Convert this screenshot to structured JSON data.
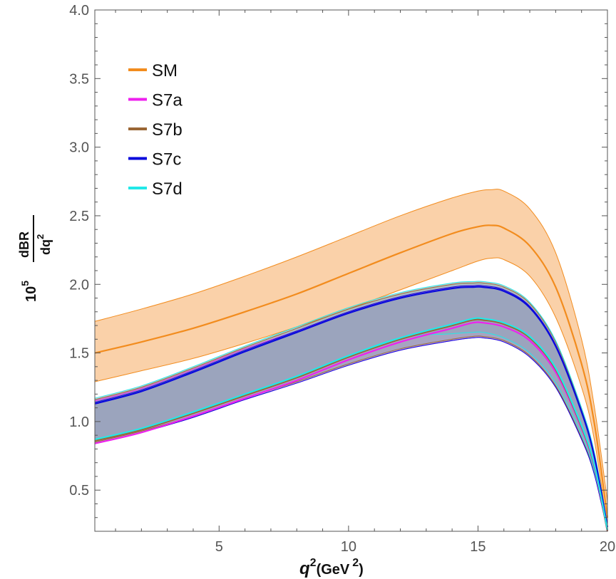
{
  "chart_data": {
    "type": "line",
    "title": "",
    "xlabel": {
      "base": "q",
      "sup": "2",
      "unit_open": "(GeV",
      "unit_sup": "2",
      "unit_close": ")"
    },
    "ylabel": {
      "factor": "10",
      "factor_sup": "5",
      "numerator": "dBR",
      "denominator": "dq",
      "denominator_sup": "2"
    },
    "xlim": [
      0.2,
      20.0
    ],
    "ylim": [
      0.2,
      4.0
    ],
    "xticks": [
      5,
      10,
      15,
      20
    ],
    "xtick_labels": [
      "5",
      "10",
      "15",
      "20"
    ],
    "yticks": [
      0.5,
      1.0,
      1.5,
      2.0,
      2.5,
      3.0,
      3.5,
      4.0
    ],
    "ytick_labels": [
      "0.5",
      "1.0",
      "1.5",
      "2.0",
      "2.5",
      "3.0",
      "3.5",
      "4.0"
    ],
    "grid": false,
    "legend_position": "top-left",
    "series": [
      {
        "name": "SM",
        "color": "#F28C1E",
        "band_fill": "#F9C99A",
        "x": [
          0.2,
          2,
          4,
          6,
          8,
          10,
          12,
          14,
          15,
          15.5,
          16,
          17,
          18,
          19,
          19.5,
          20.0
        ],
        "central": [
          1.5,
          1.58,
          1.68,
          1.8,
          1.93,
          2.08,
          2.23,
          2.37,
          2.42,
          2.43,
          2.41,
          2.28,
          1.98,
          1.42,
          0.98,
          0.3
        ],
        "upper": [
          1.73,
          1.82,
          1.93,
          2.06,
          2.2,
          2.35,
          2.5,
          2.63,
          2.68,
          2.69,
          2.68,
          2.55,
          2.23,
          1.6,
          1.1,
          0.42
        ],
        "lower": [
          1.29,
          1.37,
          1.46,
          1.57,
          1.69,
          1.82,
          1.96,
          2.1,
          2.17,
          2.19,
          2.18,
          2.06,
          1.76,
          1.25,
          0.86,
          0.22
        ]
      },
      {
        "name": "S7a",
        "color": "#EE20EE",
        "band_fill": "#A48BC8",
        "x": [
          0.2,
          2,
          4,
          6,
          8,
          10,
          12,
          14,
          14.8,
          15.2,
          16,
          17,
          18,
          19,
          19.5,
          20.0
        ],
        "central": [
          0.84,
          0.92,
          1.04,
          1.17,
          1.3,
          1.45,
          1.58,
          1.68,
          1.72,
          1.72,
          1.69,
          1.59,
          1.36,
          0.95,
          0.66,
          0.2
        ],
        "upper": [
          1.15,
          1.24,
          1.38,
          1.53,
          1.66,
          1.8,
          1.91,
          1.98,
          1.99,
          1.99,
          1.96,
          1.84,
          1.56,
          1.08,
          0.75,
          0.24
        ],
        "lower": [
          0.84,
          0.92,
          1.03,
          1.16,
          1.28,
          1.41,
          1.52,
          1.59,
          1.61,
          1.61,
          1.58,
          1.47,
          1.25,
          0.87,
          0.61,
          0.2
        ]
      },
      {
        "name": "S7b",
        "color": "#9A6635",
        "band_fill": "#7F8A78",
        "x": [
          0.2,
          2,
          4,
          6,
          8,
          10,
          12,
          14,
          14.8,
          15.2,
          16,
          17,
          18,
          19,
          19.5,
          20.0
        ],
        "central": [
          0.86,
          0.94,
          1.06,
          1.19,
          1.32,
          1.47,
          1.6,
          1.7,
          1.74,
          1.74,
          1.71,
          1.61,
          1.38,
          0.96,
          0.67,
          0.2
        ],
        "upper": [
          1.16,
          1.25,
          1.39,
          1.54,
          1.68,
          1.82,
          1.93,
          2.0,
          2.01,
          2.01,
          1.98,
          1.86,
          1.58,
          1.09,
          0.76,
          0.25
        ],
        "lower": [
          0.85,
          0.93,
          1.04,
          1.17,
          1.29,
          1.42,
          1.53,
          1.6,
          1.62,
          1.62,
          1.59,
          1.48,
          1.26,
          0.88,
          0.62,
          0.2
        ]
      },
      {
        "name": "S7c",
        "color": "#0A0ADC",
        "band_fill": "#A09AD0",
        "x": [
          0.2,
          2,
          4,
          6,
          8,
          10,
          12,
          14,
          14.8,
          15.2,
          16,
          17,
          18,
          19,
          19.5,
          20.0
        ],
        "central": [
          1.13,
          1.22,
          1.36,
          1.51,
          1.65,
          1.79,
          1.9,
          1.97,
          1.98,
          1.98,
          1.95,
          1.83,
          1.55,
          1.07,
          0.74,
          0.23
        ],
        "upper": [
          1.14,
          1.23,
          1.37,
          1.52,
          1.66,
          1.8,
          1.91,
          1.98,
          1.99,
          1.99,
          1.96,
          1.84,
          1.56,
          1.08,
          0.75,
          0.24
        ],
        "lower": [
          0.84,
          0.92,
          1.03,
          1.16,
          1.28,
          1.41,
          1.52,
          1.59,
          1.61,
          1.61,
          1.58,
          1.47,
          1.25,
          0.87,
          0.61,
          0.2
        ]
      },
      {
        "name": "S7d",
        "color": "#22E8E8",
        "band_fill": "#8FA3B8",
        "x": [
          0.2,
          2,
          4,
          6,
          8,
          10,
          12,
          14,
          14.8,
          15.2,
          16,
          17,
          18,
          19,
          19.5,
          20.0
        ],
        "central": [
          0.87,
          0.95,
          1.07,
          1.2,
          1.33,
          1.48,
          1.61,
          1.71,
          1.75,
          1.75,
          1.72,
          1.62,
          1.39,
          0.97,
          0.68,
          0.21
        ],
        "upper": [
          1.17,
          1.26,
          1.4,
          1.55,
          1.69,
          1.83,
          1.94,
          2.01,
          2.02,
          2.02,
          1.99,
          1.87,
          1.59,
          1.1,
          0.77,
          0.25
        ],
        "lower": [
          0.87,
          0.95,
          1.07,
          1.2,
          1.33,
          1.48,
          1.61,
          1.64,
          1.65,
          1.65,
          1.61,
          1.5,
          1.28,
          0.9,
          0.63,
          0.21
        ]
      }
    ]
  }
}
